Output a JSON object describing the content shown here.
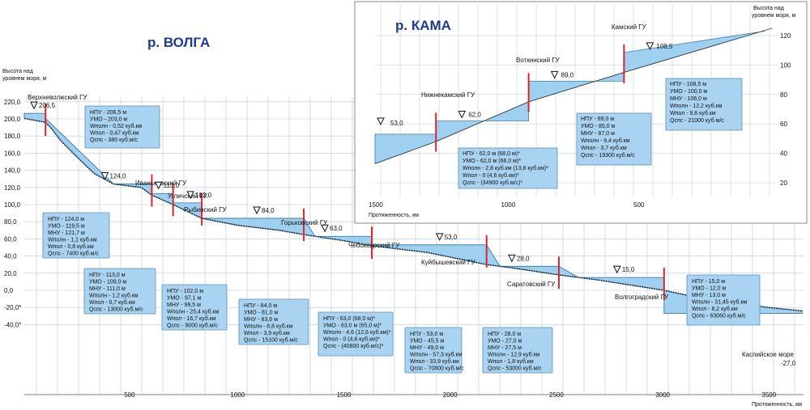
{
  "volga": {
    "title": "р. ВОЛГА",
    "y_axis_label_1": "Высота над",
    "y_axis_label_2": "уровнем моря, м",
    "x_axis_label": "Протяженность, км",
    "y_ticks": [
      "220,0",
      "200,0",
      "180,0",
      "160,0",
      "140,0",
      "120,0",
      "100,0",
      "80,0",
      "60,0",
      "40,0",
      "20,0",
      "0,0",
      "-20,0*",
      "-40,0*"
    ],
    "x_ticks": [
      "500",
      "1000",
      "1500",
      "2000",
      "2500",
      "3000",
      "3500"
    ],
    "sea_label": "Каспийское море",
    "sea_level": "-27,0",
    "stations": [
      {
        "name": "Верхневолжский ГУ",
        "level": "206,5",
        "box": [
          "НПУ  - 206,5 м",
          "УМО  - 203,0 м",
          "Wполн - 0,52 куб.км",
          "Wпол  - 0,47 куб.км",
          "Qспс  - 380 куб.м/с"
        ]
      },
      {
        "name": "Иваньковский ГУ",
        "level": "124,0",
        "box": [
          "НПУ  - 124,0 м",
          "УМО  - 119,5 м",
          "МНУ  - 121,7 м",
          "Wполн - 1,1 куб.км",
          "Wпол  - 0,8 куб.км",
          "Qспс  - 7400 куб.м/с"
        ]
      },
      {
        "name": "Угличский ГУ",
        "level": "113,0",
        "box": [
          "НПУ  - 113,0 м",
          "УМО  - 109,0 м",
          "МНУ  - 111,0 м",
          "Wполн - 1,2 куб.км",
          "Wпол  - 0,7 куб.км",
          "Qспс  - 13000 куб.м/с"
        ]
      },
      {
        "name": "Рыбинский ГУ",
        "level": "102,0",
        "box": [
          "НПУ  - 102,0 м",
          "УМО  - 97,1 м",
          "МНУ  - 99,5 м",
          "Wполн - 25,4 куб.км",
          "Wпол  - 16,7 куб.км",
          "Qспс  - 9000 куб.м/с"
        ]
      },
      {
        "name": "Горьковский ГУ",
        "level": "84,0",
        "box": [
          "НПУ  - 84,0 м",
          "УМО  - 81,0 м",
          "МНУ  - 83,6 м",
          "Wполн - 8,8 куб.км",
          "Wпол  - 3,9 куб.км",
          "Qспс  - 15100 куб.м/с"
        ]
      },
      {
        "name": "Чебоксарский ГУ",
        "level": "63,0",
        "box": [
          "НПУ  - 63,0 (68,0 м)*",
          "УМО  - 63,0 м (65,0 м)*",
          "Wполн - 4,6 (12,6 куб.км)*",
          "Wпол  - 0 (4,6 куб.км)*",
          "Qспс  - (40800 куб.м/с)*"
        ]
      },
      {
        "name": "Куйбышевский ГУ",
        "level": "53,0",
        "box": [
          "НПУ  - 53,0 м",
          "УМО  - 45,5 м",
          "МНУ  - 49,0 м",
          "Wполн - 57,3 куб.км",
          "Wпол  - 33,9 куб.км",
          "Qспс  - 70800 куб.м/с"
        ]
      },
      {
        "name": "Саратовский ГУ",
        "level": "28,0",
        "box": [
          "НПУ  - 28,0 м",
          "УМО  - 27,0 м",
          "МНУ  - 27,5 м",
          "Wполн - 12,9 куб.км",
          "Wпол  - 1,8 куб.км",
          "Qспс  - 53000 куб.м/с"
        ]
      },
      {
        "name": "Волгоградский ГУ",
        "level": "15,0",
        "box": [
          "НПУ  - 15,0 м",
          "УМО  - 12,0 м",
          "МНУ  - 13,0 м",
          "Wполн - 31,45 куб.км",
          "Wпол  - 8,2 куб.км",
          "Qспс  - 63060 куб.м/с"
        ]
      }
    ]
  },
  "kama": {
    "title": "р. КАМА",
    "y_axis_label_1": "Высота над",
    "y_axis_label_2": "уровнем моря, м",
    "x_axis_label": "Протяженность, км",
    "y_ticks": [
      "120",
      "100",
      "80",
      "60",
      "40",
      "20"
    ],
    "x_ticks": [
      "1500",
      "1000",
      "500"
    ],
    "start_level": "53,0",
    "stations": [
      {
        "name": "Нижнекамский ГУ",
        "level": "62,0",
        "box": [
          "НПУ  - 62,0 м (68,0 м)*",
          "УМО  - 62,0 м (66,0 м)*",
          "Wполн - 2,8 куб.км (13,8 куб.км)*",
          "Wпол  - 0 (4,6 куб.км)*",
          "Qспс  - (34900 куб.м/с)*"
        ]
      },
      {
        "name": "Воткинский ГУ",
        "level": "89,0",
        "box": [
          "НПУ  - 89,0 м",
          "УМО  - 85,0 м",
          "МНУ  - 87,0 м",
          "Wполн - 9,4 куб.км",
          "Wпол  - 3,7 куб.км",
          "Qспс  - 19300 куб.м/с"
        ]
      },
      {
        "name": "Камский ГУ",
        "level": "108,5",
        "box": [
          "НПУ  - 108,5 м",
          "УМО  - 100,0 м",
          "МНУ  - 106,0 м",
          "Wполн - 12,2 куб.км",
          "Wпол  - 9,8 куб.км",
          "Qспс  - 21000 куб.м/с"
        ]
      }
    ]
  },
  "colors": {
    "water": "#9fd0ef",
    "box": "#a9d3f0",
    "dam": "#d8262f",
    "title": "#1d3c8f",
    "grid": "#b9c7d6"
  }
}
